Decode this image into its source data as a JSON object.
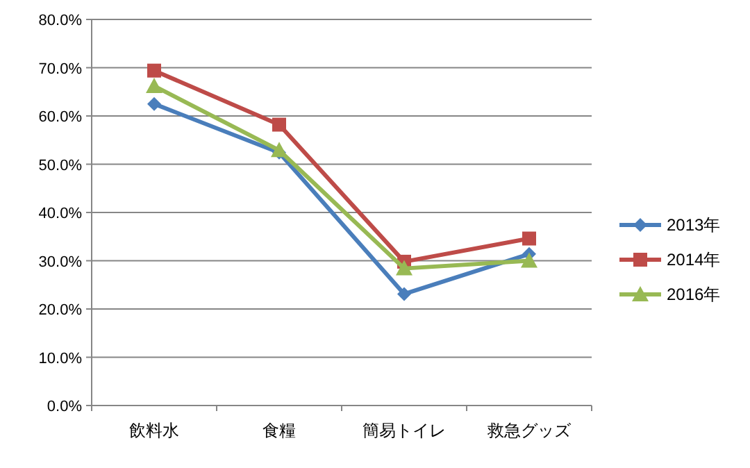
{
  "chart_data": {
    "type": "line",
    "categories": [
      "飲料水",
      "食糧",
      "簡易トイレ",
      "救急グッズ"
    ],
    "series": [
      {
        "name": "2013年",
        "color": "#4a7ebb",
        "marker": "diamond",
        "values": [
          62.5,
          52.4,
          23.1,
          31.4
        ]
      },
      {
        "name": "2014年",
        "color": "#be4b48",
        "marker": "square",
        "values": [
          69.4,
          58.2,
          29.8,
          34.6
        ]
      },
      {
        "name": "2016年",
        "color": "#98b954",
        "marker": "triangle",
        "values": [
          66.2,
          52.9,
          28.4,
          30.0
        ]
      }
    ],
    "ylim": [
      0,
      80
    ],
    "yticks": [
      {
        "value": 0,
        "label": "0.0%"
      },
      {
        "value": 10,
        "label": "10.0%"
      },
      {
        "value": 20,
        "label": "20.0%"
      },
      {
        "value": 30,
        "label": "30.0%"
      },
      {
        "value": 40,
        "label": "40.0%"
      },
      {
        "value": 50,
        "label": "50.0%"
      },
      {
        "value": 60,
        "label": "60.0%"
      },
      {
        "value": 70,
        "label": "70.0%"
      },
      {
        "value": 80,
        "label": "80.0%"
      }
    ],
    "grid": "y",
    "legend": "right",
    "line_style": "solid"
  }
}
